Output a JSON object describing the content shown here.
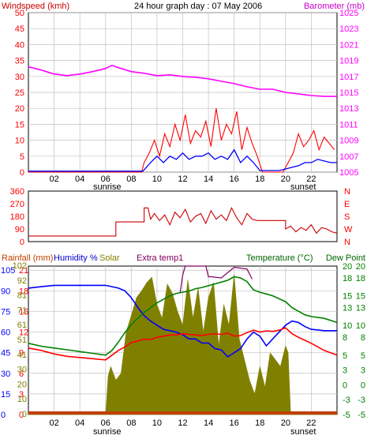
{
  "header": {
    "left_label": "Windspeed (kmh)",
    "title": "24 hour graph day : 07 May 2006",
    "right_label": "Barometer (mb)"
  },
  "footer_labels": {
    "sunrise": "sunrise",
    "sunset": "sunset"
  },
  "bottom_legend": {
    "rainfall": "Rainfall (mm)",
    "humidity": "Humidity %",
    "solar": "Solar",
    "extra": "Extra temp1",
    "temperature": "Temperature (°C)",
    "dewpoint": "Dew Point"
  },
  "colors": {
    "wind": "#ff0000",
    "gust": "#ff0000",
    "avg_wind": "#0000ff",
    "barometer": "#ff00ff",
    "direction": "#cc0000",
    "humidity": "#0000ff",
    "temperature": "#ff0000",
    "dewpoint": "#008000",
    "extra": "#800060",
    "solar": "#808000",
    "rain": "#c04000",
    "axis_left": "#ff0000",
    "axis_right_top": "#ff00ff",
    "axis_right_bottom": "#008000",
    "grid": "#c0c0c0"
  },
  "chart_data": [
    {
      "type": "line",
      "name": "wind-barometer",
      "x_unit": "hour",
      "x_ticks": [
        "02",
        "04",
        "06",
        "08",
        "10",
        "12",
        "14",
        "16",
        "18",
        "20",
        "22"
      ],
      "x_range": [
        0,
        24
      ],
      "y_left": {
        "ticks": [
          0,
          5,
          10,
          15,
          20,
          25,
          30,
          35,
          40,
          45,
          50
        ],
        "range": [
          0,
          50
        ]
      },
      "y_right": {
        "ticks": [
          1005,
          1007,
          1009,
          1011,
          1013,
          1015,
          1017,
          1019,
          1021,
          1023,
          1025
        ],
        "range": [
          1005,
          1025
        ]
      },
      "grid": true,
      "series": [
        {
          "id": "barometer",
          "axis": "right",
          "x": [
            0,
            1,
            2,
            3,
            4,
            5,
            6,
            6.5,
            7,
            8,
            9,
            10,
            11,
            12,
            13,
            14,
            15,
            16,
            17,
            18,
            19,
            20,
            21,
            22,
            23,
            24
          ],
          "y": [
            1018.2,
            1017.8,
            1017.3,
            1017.1,
            1017.3,
            1017.6,
            1018.0,
            1018.4,
            1018.1,
            1017.6,
            1017.4,
            1017.1,
            1017.2,
            1017.0,
            1016.9,
            1016.7,
            1016.4,
            1016.1,
            1015.7,
            1015.4,
            1015.4,
            1015.0,
            1014.8,
            1014.6,
            1014.5,
            1014.5
          ]
        },
        {
          "id": "wind_high",
          "axis": "left",
          "x": [
            0,
            8.8,
            9.0,
            9.4,
            9.8,
            10.2,
            10.6,
            11.0,
            11.4,
            11.8,
            12.2,
            12.6,
            13.0,
            13.4,
            13.8,
            14.2,
            14.6,
            15.0,
            15.4,
            15.8,
            16.2,
            16.6,
            17.0,
            17.4,
            17.8,
            18.2,
            19.8,
            20.2,
            20.6,
            21.0,
            21.4,
            21.8,
            22.2,
            22.6,
            23.0,
            23.4,
            23.8
          ],
          "y": [
            0,
            0,
            3,
            6,
            10,
            5,
            12,
            8,
            15,
            10,
            18,
            9,
            13,
            11,
            16,
            8,
            20,
            10,
            15,
            12,
            19,
            7,
            14,
            9,
            5,
            0,
            0,
            3,
            6,
            12,
            8,
            10,
            13,
            7,
            11,
            9,
            7
          ]
        },
        {
          "id": "wind_avg",
          "axis": "left",
          "x": [
            0,
            8.9,
            9.5,
            10,
            10.5,
            11,
            11.5,
            12,
            12.5,
            13,
            13.5,
            14,
            14.5,
            15,
            15.5,
            16,
            16.5,
            17,
            17.5,
            18,
            19.5,
            20,
            20.5,
            21,
            21.5,
            22,
            22.5,
            23,
            23.5,
            24
          ],
          "y": [
            0.3,
            0.3,
            3,
            5,
            3,
            5,
            4,
            6,
            4,
            5,
            5,
            6,
            4,
            5,
            4,
            7,
            3,
            5,
            3,
            0.5,
            0.5,
            1,
            1.5,
            2,
            3,
            3,
            4,
            3.5,
            3,
            3
          ]
        }
      ]
    },
    {
      "type": "line",
      "name": "wind-direction",
      "x_range": [
        0,
        24
      ],
      "y_left": {
        "ticks": [
          0,
          90,
          180,
          270,
          360
        ],
        "range": [
          0,
          360
        ]
      },
      "y_right": {
        "ticks": [
          "N",
          "W",
          "S",
          "E",
          "N"
        ]
      },
      "series": [
        {
          "id": "direction",
          "x": [
            0,
            6.8,
            6.8,
            9.0,
            9.0,
            9.3,
            9.5,
            9.8,
            10.2,
            10.6,
            11.0,
            11.4,
            11.8,
            12.2,
            12.6,
            13.0,
            13.4,
            13.8,
            14.2,
            14.6,
            15.0,
            15.4,
            15.8,
            16.2,
            16.6,
            17.0,
            17.4,
            17.8,
            20.0,
            20.0,
            20.4,
            20.8,
            21.2,
            21.6,
            22.0,
            22.4,
            22.8,
            23.2,
            23.6,
            24.0
          ],
          "y": [
            40,
            40,
            140,
            140,
            240,
            240,
            160,
            200,
            150,
            190,
            120,
            210,
            170,
            230,
            140,
            180,
            200,
            130,
            220,
            160,
            190,
            150,
            240,
            170,
            120,
            200,
            160,
            150,
            150,
            90,
            110,
            70,
            100,
            80,
            120,
            60,
            100,
            90,
            70,
            60
          ]
        }
      ]
    },
    {
      "type": "line",
      "name": "temperature-humidity-solar",
      "x_range": [
        0,
        24
      ],
      "y_left": {
        "ticks": [
          0,
          15,
          30,
          45,
          60,
          75,
          90,
          105
        ],
        "labels": [
          "0",
          "15",
          "30",
          "45",
          "60",
          "75",
          "90",
          "105"
        ],
        "range": [
          0,
          108
        ]
      },
      "y_left_inner": {
        "labels": [
          "0",
          "3",
          "6",
          "9",
          "12",
          "15",
          "18",
          "21"
        ]
      },
      "y_left_inner2": {
        "labels": [
          "0",
          "10",
          "20",
          "30",
          "41",
          "51",
          "61",
          "71",
          "81",
          "92",
          "102"
        ]
      },
      "y_right": {
        "ticks": [
          -5,
          -2.5,
          0,
          2.5,
          5,
          8,
          10,
          13,
          15,
          18,
          20
        ],
        "labels": [
          "-5",
          "-3",
          "0",
          "3",
          "5",
          "8",
          "10",
          "13",
          "15",
          "18",
          "20"
        ],
        "range": [
          -5,
          20
        ]
      },
      "y_right_inner": {
        "labels": [
          "-5",
          "-3",
          "0",
          "3",
          "5",
          "8",
          "10",
          "13",
          "15",
          "18",
          "20"
        ]
      },
      "grid": true,
      "series": [
        {
          "id": "humidity",
          "axis": "left",
          "x": [
            0,
            1,
            2,
            3,
            4,
            5,
            6,
            6.5,
            7,
            7.5,
            8,
            8.5,
            9,
            9.5,
            10,
            10.5,
            11,
            11.5,
            12,
            12.5,
            13,
            13.5,
            14,
            14.5,
            15,
            15.5,
            16,
            16.5,
            17,
            17.5,
            18,
            18.5,
            19,
            19.5,
            20,
            20.5,
            21,
            21.5,
            22,
            23,
            24
          ],
          "y": [
            92,
            93,
            94,
            94,
            94,
            94,
            94,
            93,
            92,
            90,
            85,
            78,
            72,
            68,
            65,
            62,
            61,
            60,
            58,
            55,
            55,
            52,
            52,
            48,
            47,
            42,
            45,
            48,
            55,
            60,
            57,
            50,
            55,
            60,
            65,
            68,
            67,
            64,
            62,
            61,
            61
          ]
        },
        {
          "id": "temperature",
          "axis": "right",
          "x": [
            0,
            1,
            2,
            3,
            4,
            5,
            6,
            6.5,
            7,
            7.5,
            8,
            8.5,
            9,
            9.5,
            10,
            10.5,
            11,
            11.5,
            12,
            12.5,
            13,
            13.5,
            14,
            14.5,
            15,
            15.5,
            16,
            16.5,
            17,
            17.5,
            18,
            18.5,
            19,
            19.5,
            20,
            20.5,
            21,
            21.5,
            22,
            23,
            24
          ],
          "y": [
            6.2,
            5.8,
            5.2,
            4.8,
            4.6,
            4.4,
            4.2,
            5.0,
            5.8,
            6.4,
            7.1,
            7.4,
            7.7,
            7.6,
            8.0,
            8.2,
            8.4,
            8.4,
            8.6,
            8.5,
            8.4,
            8.3,
            8.5,
            8.6,
            8.5,
            8.7,
            8.2,
            8.3,
            8.8,
            9.2,
            8.9,
            9.1,
            9.0,
            9.2,
            9.6,
            8.6,
            8.0,
            7.5,
            7.0,
            5.8,
            5.0
          ]
        },
        {
          "id": "dewpoint",
          "axis": "right",
          "x": [
            0,
            1,
            2,
            3,
            4,
            5,
            6,
            6.5,
            7,
            7.5,
            8,
            8.5,
            9,
            9.5,
            10,
            10.5,
            11,
            11.5,
            12,
            12.5,
            13,
            13.5,
            14,
            14.5,
            15,
            15.5,
            16,
            16.5,
            17,
            17.5,
            18,
            18.5,
            19,
            19.5,
            20,
            20.5,
            21,
            21.5,
            22,
            23,
            24
          ],
          "y": [
            7.0,
            6.5,
            6.2,
            5.9,
            5.6,
            5.3,
            5.0,
            5.8,
            7.2,
            8.8,
            10.1,
            11.2,
            12.2,
            13.0,
            13.8,
            14.4,
            15.0,
            15.4,
            15.6,
            15.8,
            16.2,
            16.4,
            16.7,
            17.0,
            17.3,
            17.6,
            18.2,
            18.0,
            17.4,
            16.0,
            15.6,
            15.3,
            15.0,
            14.5,
            14.0,
            13.0,
            12.4,
            11.8,
            11.5,
            11.2,
            10.5
          ]
        },
        {
          "id": "extra_temp1",
          "axis": "right",
          "x": [
            11.8,
            12.0,
            12.2,
            13.0,
            13.8,
            14.0,
            14.2,
            15.0,
            16.0,
            17.0,
            17.4
          ],
          "y": [
            15.5,
            18.5,
            20.0,
            20.0,
            20.0,
            18.2,
            18.2,
            18.0,
            19.8,
            19.5,
            17.8
          ]
        },
        {
          "id": "solar",
          "axis": "left",
          "x": [
            0,
            6.0,
            6.2,
            6.4,
            6.8,
            7.2,
            7.6,
            8.0,
            8.4,
            8.8,
            9.2,
            9.6,
            10.0,
            10.4,
            10.8,
            11.2,
            11.6,
            12.0,
            12.4,
            12.8,
            13.2,
            13.6,
            14.0,
            14.4,
            14.8,
            15.2,
            15.6,
            16.0,
            16.4,
            16.8,
            17.2,
            17.6,
            18.0,
            18.4,
            18.8,
            19.2,
            19.6,
            20.0,
            20.2,
            20.4,
            24
          ],
          "y": [
            0,
            0,
            28,
            35,
            25,
            30,
            60,
            72,
            85,
            90,
            96,
            100,
            80,
            70,
            95,
            88,
            75,
            65,
            98,
            70,
            92,
            60,
            85,
            96,
            50,
            80,
            65,
            102,
            55,
            40,
            25,
            15,
            35,
            20,
            45,
            40,
            35,
            50,
            45,
            0,
            0
          ]
        },
        {
          "id": "rainfall",
          "axis": "left",
          "x": [
            0,
            24
          ],
          "y": [
            0,
            0
          ]
        }
      ]
    }
  ]
}
